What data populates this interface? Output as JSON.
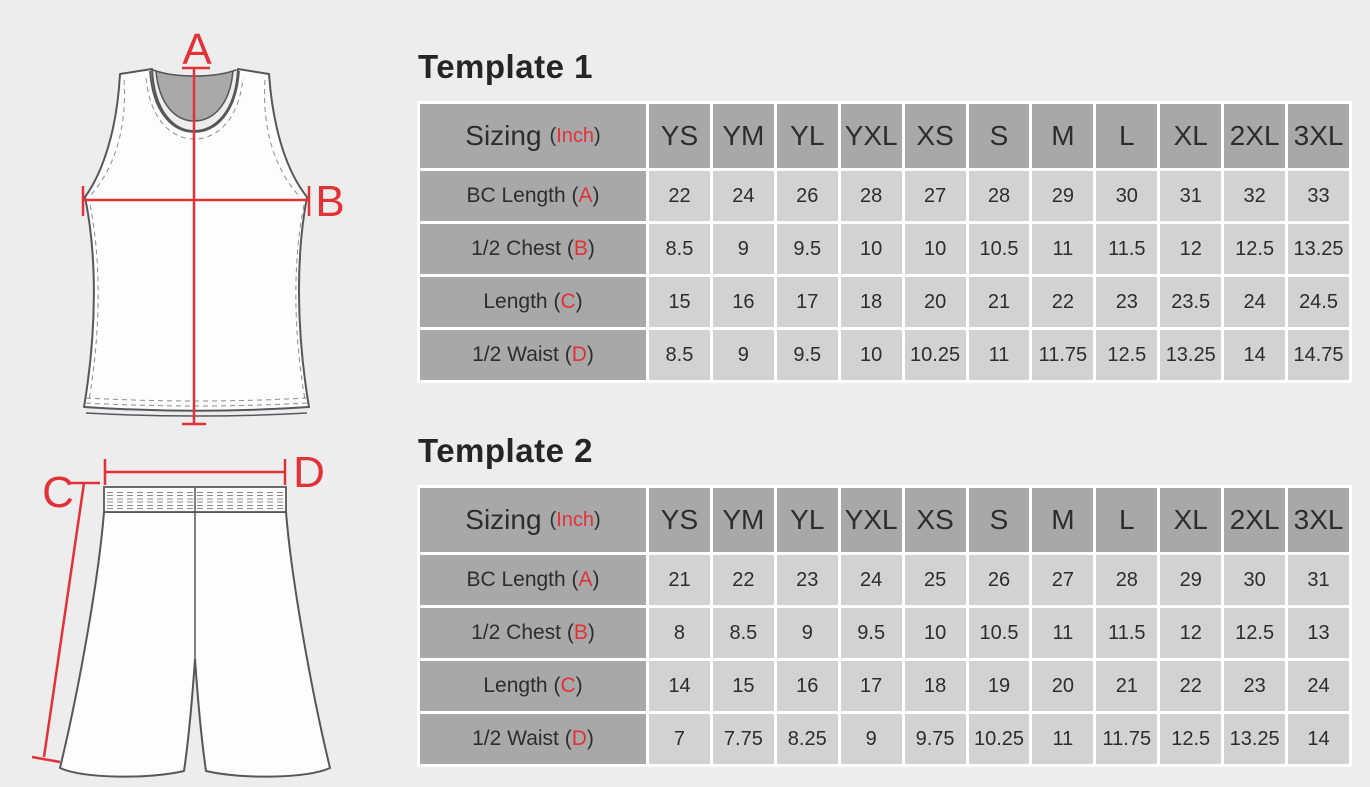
{
  "colors": {
    "accent_red": "#e23237",
    "header_gray": "#a8a8a8",
    "value_gray": "#d2d2d2",
    "page_bg": "#ededed"
  },
  "diagrams": {
    "jersey": {
      "label_a": "A",
      "label_b": "B"
    },
    "shorts": {
      "label_c": "C",
      "label_d": "D"
    }
  },
  "sections": [
    {
      "title": "Template 1",
      "sizing_label": "Sizing",
      "unit": "Inch",
      "columns": [
        "YS",
        "YM",
        "YL",
        "YXL",
        "XS",
        "S",
        "M",
        "L",
        "XL",
        "2XL",
        "3XL"
      ],
      "rows": [
        {
          "label": "BC Length",
          "letter": "A",
          "values": [
            "22",
            "24",
            "26",
            "28",
            "27",
            "28",
            "29",
            "30",
            "31",
            "32",
            "33"
          ]
        },
        {
          "label": "1/2 Chest",
          "letter": "B",
          "values": [
            "8.5",
            "9",
            "9.5",
            "10",
            "10",
            "10.5",
            "11",
            "11.5",
            "12",
            "12.5",
            "13.25"
          ]
        },
        {
          "label": "Length",
          "letter": "C",
          "values": [
            "15",
            "16",
            "17",
            "18",
            "20",
            "21",
            "22",
            "23",
            "23.5",
            "24",
            "24.5"
          ]
        },
        {
          "label": "1/2 Waist",
          "letter": "D",
          "values": [
            "8.5",
            "9",
            "9.5",
            "10",
            "10.25",
            "11",
            "11.75",
            "12.5",
            "13.25",
            "14",
            "14.75"
          ]
        }
      ]
    },
    {
      "title": "Template 2",
      "sizing_label": "Sizing",
      "unit": "Inch",
      "columns": [
        "YS",
        "YM",
        "YL",
        "YXL",
        "XS",
        "S",
        "M",
        "L",
        "XL",
        "2XL",
        "3XL"
      ],
      "rows": [
        {
          "label": "BC Length",
          "letter": "A",
          "values": [
            "21",
            "22",
            "23",
            "24",
            "25",
            "26",
            "27",
            "28",
            "29",
            "30",
            "31"
          ]
        },
        {
          "label": "1/2 Chest",
          "letter": "B",
          "values": [
            "8",
            "8.5",
            "9",
            "9.5",
            "10",
            "10.5",
            "11",
            "11.5",
            "12",
            "12.5",
            "13"
          ]
        },
        {
          "label": "Length",
          "letter": "C",
          "values": [
            "14",
            "15",
            "16",
            "17",
            "18",
            "19",
            "20",
            "21",
            "22",
            "23",
            "24"
          ]
        },
        {
          "label": "1/2 Waist",
          "letter": "D",
          "values": [
            "7",
            "7.75",
            "8.25",
            "9",
            "9.75",
            "10.25",
            "11",
            "11.75",
            "12.5",
            "13.25",
            "14"
          ]
        }
      ]
    }
  ]
}
